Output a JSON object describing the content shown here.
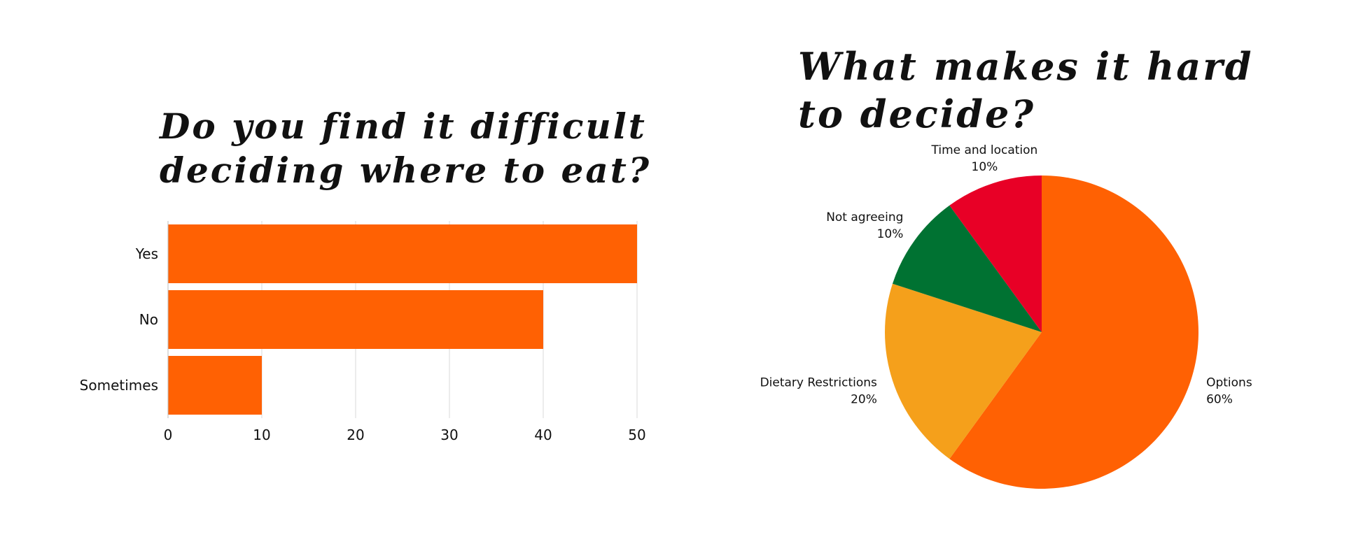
{
  "chart_data": [
    {
      "type": "bar",
      "orientation": "horizontal",
      "title_lines": [
        "Do you find it difficult",
        "deciding where to eat?"
      ],
      "categories": [
        "Yes",
        "No",
        "Sometimes"
      ],
      "values": [
        50,
        40,
        10
      ],
      "xticks": [
        0,
        10,
        20,
        30,
        40,
        50
      ],
      "xlim": [
        0,
        50
      ],
      "xlabel": "",
      "ylabel": "",
      "grid": "vertical",
      "color": "#FF6103"
    },
    {
      "type": "pie",
      "title_lines": [
        "What makes it hard",
        "to decide?"
      ],
      "slices": [
        {
          "label": "Options",
          "value": 60,
          "value_label": "60%",
          "color": "#FF6103"
        },
        {
          "label": "Dietary Restrictions",
          "value": 20,
          "value_label": "20%",
          "color": "#F5A01B"
        },
        {
          "label": "Not agreeing",
          "value": 10,
          "value_label": "10%",
          "color": "#007232"
        },
        {
          "label": "Time and location",
          "value": 10,
          "value_label": "10%",
          "color": "#E80026"
        }
      ],
      "start": "12 o'clock",
      "direction": "clockwise"
    }
  ]
}
